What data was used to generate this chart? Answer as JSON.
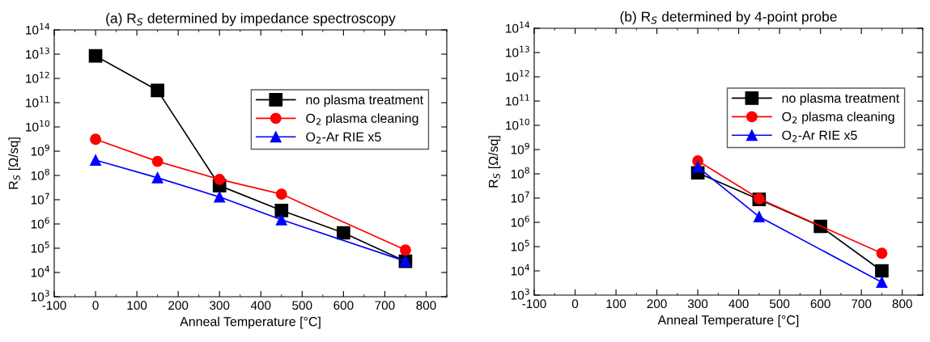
{
  "chart_data": [
    {
      "type": "line",
      "title": "(a) R$_{S}$ determined by impedance spectroscopy",
      "xlabel": "Anneal Temperature [°C]",
      "ylabel": "R$_{S}$ [Ω/sq]",
      "log": true,
      "grid": false,
      "legend": "top right",
      "xlim": [
        -100,
        850
      ],
      "xticks": [
        -100,
        0,
        100,
        200,
        300,
        400,
        500,
        600,
        700,
        800
      ],
      "ylim": [
        1000,
        100000000000000
      ],
      "yticks": [
        {
          "value": 1000,
          "label": "10$^{3}$"
        },
        {
          "value": 10000,
          "label": "10$^{4}$"
        },
        {
          "value": 100000,
          "label": "10$^{5}$"
        },
        {
          "value": 1000000,
          "label": "10$^{6}$"
        },
        {
          "value": 10000000,
          "label": "10$^{7}$"
        },
        {
          "value": 100000000,
          "label": "10$^{8}$"
        },
        {
          "value": 1000000000,
          "label": "10$^{9}$"
        },
        {
          "value": 10000000000,
          "label": "10$^{10}$"
        },
        {
          "value": 100000000000,
          "label": "10$^{11}$"
        },
        {
          "value": 1000000000000,
          "label": "10$^{12}$"
        },
        {
          "value": 10000000000000,
          "label": "10$^{13}$"
        },
        {
          "value": 100000000000000,
          "label": "10$^{14}$"
        }
      ],
      "series": [
        {
          "name": "no plasma treatment",
          "color": "#000000",
          "marker": "square",
          "x": [
            0,
            150,
            300,
            450,
            600,
            750
          ],
          "values": [
            8500000000000,
            320000000000,
            38000000,
            3600000,
            430000,
            29000
          ]
        },
        {
          "name": "O$_{2}$ plasma cleaning",
          "color": "#ff0000",
          "marker": "circle",
          "x": [
            0,
            150,
            300,
            450,
            750
          ],
          "values": [
            3100000000,
            380000000,
            69000000,
            17000000,
            84000
          ]
        },
        {
          "name": "O$_{2}$-Ar RIE x5",
          "color": "#0000ff",
          "marker": "triangle",
          "x": [
            0,
            150,
            300,
            450,
            750
          ],
          "values": [
            430000000,
            80000000,
            13000000,
            1500000,
            29000
          ]
        }
      ]
    },
    {
      "type": "line",
      "title": "(b) R$_{S}$ determined by 4-point probe",
      "xlabel": "Anneal Temperature [°C]",
      "ylabel": "R$_{S}$ [Ω/sq]",
      "log": true,
      "grid": false,
      "legend": "top right",
      "xlim": [
        -100,
        850
      ],
      "xticks": [
        -100,
        0,
        100,
        200,
        300,
        400,
        500,
        600,
        700,
        800
      ],
      "ylim": [
        1000,
        100000000000000
      ],
      "yticks": [
        {
          "value": 1000,
          "label": "10$^{3}$"
        },
        {
          "value": 10000,
          "label": "10$^{4}$"
        },
        {
          "value": 100000,
          "label": "10$^{5}$"
        },
        {
          "value": 1000000,
          "label": "10$^{6}$"
        },
        {
          "value": 10000000,
          "label": "10$^{7}$"
        },
        {
          "value": 100000000,
          "label": "10$^{8}$"
        },
        {
          "value": 1000000000,
          "label": "10$^{9}$"
        },
        {
          "value": 10000000000,
          "label": "10$^{10}$"
        },
        {
          "value": 100000000000,
          "label": "10$^{11}$"
        },
        {
          "value": 1000000000000,
          "label": "10$^{12}$"
        },
        {
          "value": 10000000000000,
          "label": "10$^{13}$"
        },
        {
          "value": 100000000000000,
          "label": "10$^{14}$"
        }
      ],
      "series": [
        {
          "name": "no plasma treatment",
          "color": "#000000",
          "marker": "square",
          "x": [
            300,
            450,
            600,
            750
          ],
          "values": [
            110000000,
            8800000,
            680000,
            10000
          ]
        },
        {
          "name": "O$_{2}$ plasma cleaning",
          "color": "#ff0000",
          "marker": "circle",
          "x": [
            300,
            450,
            750
          ],
          "values": [
            340000000,
            9400000,
            53000
          ]
        },
        {
          "name": "O$_{2}$-Ar RIE x5",
          "color": "#0000ff",
          "marker": "triangle",
          "x": [
            300,
            450,
            750
          ],
          "values": [
            190000000,
            1700000,
            3400
          ]
        }
      ]
    }
  ]
}
